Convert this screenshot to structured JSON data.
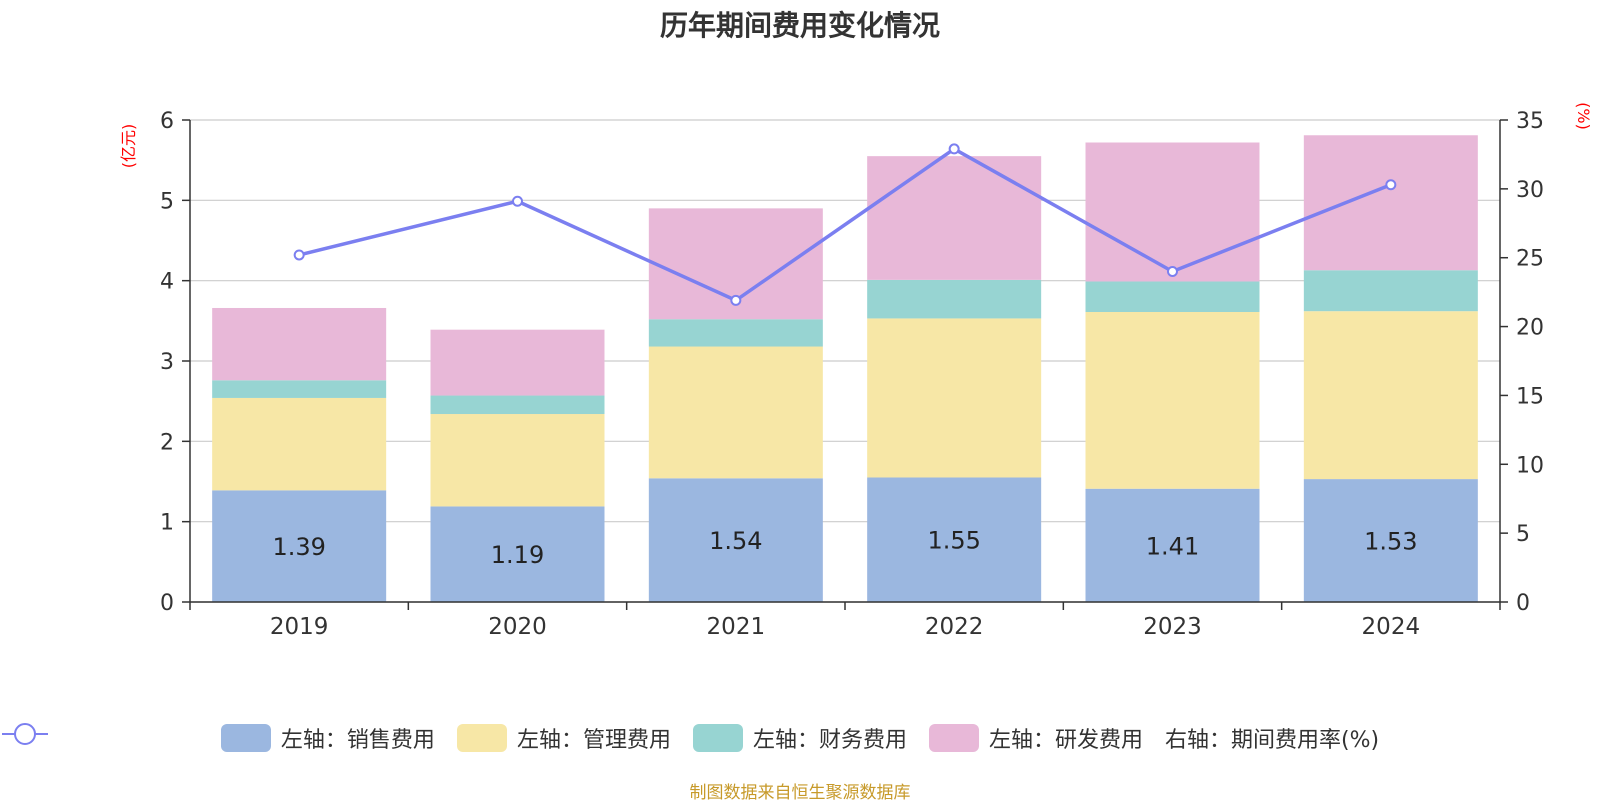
{
  "chart_data": {
    "type": "bar",
    "title": "历年期间费用变化情况",
    "categories": [
      "2019",
      "2020",
      "2021",
      "2022",
      "2023",
      "2024"
    ],
    "left_axis": {
      "label": "(亿元)",
      "ylim": [
        0,
        6
      ],
      "ticks": [
        "0",
        "1",
        "2",
        "3",
        "4",
        "5",
        "6"
      ]
    },
    "right_axis": {
      "label": "(%)",
      "ylim": [
        0,
        35
      ],
      "ticks": [
        "0",
        "5",
        "10",
        "15",
        "20",
        "25",
        "30",
        "35"
      ]
    },
    "series": [
      {
        "name": "左轴：销售费用",
        "axis": "left",
        "type": "bar",
        "color": "#9bb7e0",
        "values": [
          1.39,
          1.19,
          1.54,
          1.55,
          1.41,
          1.53
        ],
        "labels": [
          "1.39",
          "1.19",
          "1.54",
          "1.55",
          "1.41",
          "1.53"
        ]
      },
      {
        "name": "左轴：管理费用",
        "axis": "left",
        "type": "bar",
        "color": "#f7e7a6",
        "values": [
          1.15,
          1.15,
          1.64,
          1.98,
          2.2,
          2.09
        ]
      },
      {
        "name": "左轴：财务费用",
        "axis": "left",
        "type": "bar",
        "color": "#97d4d2",
        "values": [
          0.22,
          0.23,
          0.34,
          0.48,
          0.38,
          0.51
        ]
      },
      {
        "name": "左轴：研发费用",
        "axis": "left",
        "type": "bar",
        "color": "#e8b8d8",
        "values": [
          0.9,
          0.82,
          1.38,
          1.54,
          1.73,
          1.68
        ]
      },
      {
        "name": "右轴：期间费用率(%)",
        "axis": "right",
        "type": "line",
        "color": "#7b7ff0",
        "values": [
          25.2,
          29.1,
          21.9,
          32.9,
          24.0,
          30.3
        ]
      }
    ],
    "grid": true,
    "legend_position": "bottom"
  },
  "footer": "制图数据来自恒生聚源数据库"
}
